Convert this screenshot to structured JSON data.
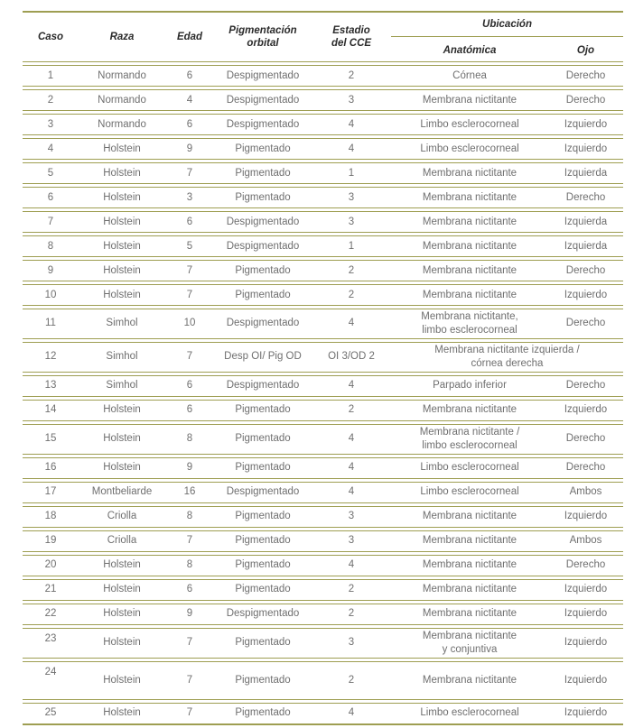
{
  "page": {
    "background": "#ffffff"
  },
  "table": {
    "line_color": "#9e9e52",
    "header_text_color": "#2b2b2b",
    "body_text_color": "#6f6f6f",
    "columns": [
      {
        "key": "caso",
        "label": "Caso"
      },
      {
        "key": "raza",
        "label": "Raza"
      },
      {
        "key": "edad",
        "label": "Edad"
      },
      {
        "key": "pigmentacion",
        "label": "Pigmentación\norbital"
      },
      {
        "key": "estadio",
        "label": "Estadio\ndel CCE"
      },
      {
        "key": "anatomica",
        "label": "Anatómica"
      },
      {
        "key": "ojo",
        "label": "Ojo"
      }
    ],
    "group_header": {
      "label": "Ubicación"
    },
    "rows": [
      {
        "caso": "1",
        "raza": "Normando",
        "edad": "6",
        "pigmentacion": "Despigmentado",
        "estadio": "2",
        "anatomica": "Córnea",
        "ojo": "Derecho"
      },
      {
        "caso": "2",
        "raza": "Normando",
        "edad": "4",
        "pigmentacion": "Despigmentado",
        "estadio": "3",
        "anatomica": "Membrana nictitante",
        "ojo": "Derecho"
      },
      {
        "caso": "3",
        "raza": "Normando",
        "edad": "6",
        "pigmentacion": "Despigmentado",
        "estadio": "4",
        "anatomica": "Limbo esclerocorneal",
        "ojo": "Izquierdo"
      },
      {
        "caso": "4",
        "raza": "Holstein",
        "edad": "9",
        "pigmentacion": "Pigmentado",
        "estadio": "4",
        "anatomica": "Limbo esclerocorneal",
        "ojo": "Izquierdo"
      },
      {
        "caso": "5",
        "raza": "Holstein",
        "edad": "7",
        "pigmentacion": "Pigmentado",
        "estadio": "1",
        "anatomica": "Membrana nictitante",
        "ojo": "Izquierda"
      },
      {
        "caso": "6",
        "raza": "Holstein",
        "edad": "3",
        "pigmentacion": "Pigmentado",
        "estadio": "3",
        "anatomica": "Membrana nictitante",
        "ojo": "Derecho"
      },
      {
        "caso": "7",
        "raza": "Holstein",
        "edad": "6",
        "pigmentacion": "Despigmentado",
        "estadio": "3",
        "anatomica": "Membrana nictitante",
        "ojo": "Izquierda"
      },
      {
        "caso": "8",
        "raza": "Holstein",
        "edad": "5",
        "pigmentacion": "Despigmentado",
        "estadio": "1",
        "anatomica": "Membrana nictitante",
        "ojo": "Izquierda"
      },
      {
        "caso": "9",
        "raza": "Holstein",
        "edad": "7",
        "pigmentacion": "Pigmentado",
        "estadio": "2",
        "anatomica": "Membrana nictitante",
        "ojo": "Derecho"
      },
      {
        "caso": "10",
        "raza": "Holstein",
        "edad": "7",
        "pigmentacion": "Pigmentado",
        "estadio": "2",
        "anatomica": "Membrana nictitante",
        "ojo": "Izquierdo"
      },
      {
        "caso": "11",
        "raza": "Simhol",
        "edad": "10",
        "pigmentacion": "Despigmentado",
        "estadio": "4",
        "anatomica": "Membrana nictitante,\nlimbo esclerocorneal",
        "ojo": "Derecho"
      },
      {
        "caso": "12",
        "raza": "Simhol",
        "edad": "7",
        "pigmentacion": "Desp OI/ Pig OD",
        "estadio": "OI 3/OD 2",
        "anatomica": "Membrana nictitante izquierda /\ncórnea derecha",
        "ojo": "",
        "anatomica_colspan": 2
      },
      {
        "caso": "13",
        "raza": "Simhol",
        "edad": "6",
        "pigmentacion": "Despigmentado",
        "estadio": "4",
        "anatomica": "Parpado inferior",
        "ojo": "Derecho"
      },
      {
        "caso": "14",
        "raza": "Holstein",
        "edad": "6",
        "pigmentacion": "Pigmentado",
        "estadio": "2",
        "anatomica": "Membrana nictitante",
        "ojo": "Izquierdo"
      },
      {
        "caso": "15",
        "raza": "Holstein",
        "edad": "8",
        "pigmentacion": "Pigmentado",
        "estadio": "4",
        "anatomica": "Membrana nictitante /\nlimbo esclerocorneal",
        "ojo": "Derecho"
      },
      {
        "caso": "16",
        "raza": "Holstein",
        "edad": "9",
        "pigmentacion": "Pigmentado",
        "estadio": "4",
        "anatomica": "Limbo esclerocorneal",
        "ojo": "Derecho"
      },
      {
        "caso": "17",
        "raza": "Montbeliarde",
        "edad": "16",
        "pigmentacion": "Despigmentado",
        "estadio": "4",
        "anatomica": "Limbo esclerocorneal",
        "ojo": "Ambos"
      },
      {
        "caso": "18",
        "raza": "Criolla",
        "edad": "8",
        "pigmentacion": "Pigmentado",
        "estadio": "3",
        "anatomica": "Membrana nictitante",
        "ojo": "Izquierdo"
      },
      {
        "caso": "19",
        "raza": "Criolla",
        "edad": "7",
        "pigmentacion": "Pigmentado",
        "estadio": "3",
        "anatomica": "Membrana nictitante",
        "ojo": "Ambos"
      },
      {
        "caso": "20",
        "raza": "Holstein",
        "edad": "8",
        "pigmentacion": "Pigmentado",
        "estadio": "4",
        "anatomica": "Membrana nictitante",
        "ojo": "Derecho"
      },
      {
        "caso": "21",
        "raza": "Holstein",
        "edad": "6",
        "pigmentacion": "Pigmentado",
        "estadio": "2",
        "anatomica": "Membrana nictitante",
        "ojo": "Izquierdo"
      },
      {
        "caso": "22",
        "raza": "Holstein",
        "edad": "9",
        "pigmentacion": "Despigmentado",
        "estadio": "2",
        "anatomica": "Membrana nictitante",
        "ojo": "Izquierdo"
      },
      {
        "caso": "23",
        "raza": "Holstein",
        "edad": "7",
        "pigmentacion": "Pigmentado",
        "estadio": "3",
        "anatomica": "Membrana nictitante\ny conjuntiva",
        "ojo": "Izquierdo"
      },
      {
        "caso": "24",
        "raza": "Holstein",
        "edad": "7",
        "pigmentacion": "Pigmentado",
        "estadio": "2",
        "anatomica": "Membrana nictitante",
        "ojo": "Izquierdo"
      },
      {
        "caso": "25",
        "raza": "Holstein",
        "edad": "7",
        "pigmentacion": "Pigmentado",
        "estadio": "4",
        "anatomica": "Limbo esclerocorneal",
        "ojo": "Izquierdo"
      }
    ]
  }
}
